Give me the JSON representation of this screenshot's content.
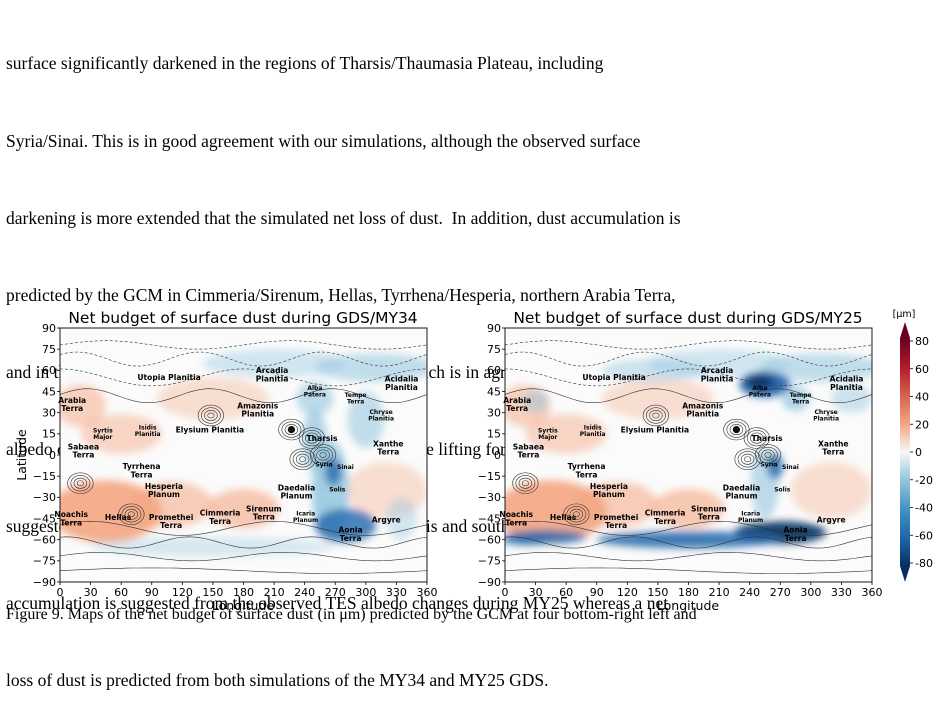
{
  "paragraph": {
    "lines": [
      "surface significantly darkened in the regions of Tharsis/Thaumasia Plateau, including",
      "Syria/Sinai. This is in good agreement with our simulations, although the observed surface",
      "darkening is more extended that the simulated net loss of dust.  In addition, dust accumulation is",
      "predicted by the GCM in Cimmeria/Sirenum, Hellas, Tyrrhena/Hesperia, northern Arabia Terra,",
      "and in the northern low-topographic plains below 45°N, which is in agreement with the observed",
      "albedo changes. However, the GCM predicts strong cap edge lifting for MY25, which is not",
      "suggested by the albedo maps. In the regions of Xanthe, Solis and south Arabia Terra, a net dust",
      "accumulation is suggested from the observed TES albedo changes during MY25 whereas a net",
      "loss of dust is predicted from both simulations of the MY34 and MY25 GDS."
    ]
  },
  "colors": {
    "dust_gain": "#f4a582",
    "dust_gain_strong": "#d6604d",
    "dust_loss": "#92c5de",
    "dust_loss_strong": "#2166ac",
    "dust_loss_extreme": "#053061",
    "dust_gain_extreme": "#67001f"
  },
  "figure": {
    "maps": [
      {
        "title": "Net budget of surface dust during GDS/MY34",
        "variant": "MY34"
      },
      {
        "title": "Net budget of surface dust during GDS/MY25",
        "variant": "MY25"
      }
    ],
    "xlabel": "Longitude",
    "ylabel": "Latitude",
    "xticks": [
      "0",
      "30",
      "60",
      "90",
      "120",
      "150",
      "180",
      "210",
      "240",
      "270",
      "300",
      "330",
      "360"
    ],
    "yticks": [
      "90",
      "75",
      "60",
      "45",
      "30",
      "15",
      "0",
      "−15",
      "−30",
      "−45",
      "−60",
      "−75",
      "−90"
    ],
    "colorbar": {
      "unit": "[μm]",
      "ticks": [
        "80",
        "60",
        "40",
        "20",
        "0",
        "-20",
        "-40",
        "-60",
        "-80"
      ]
    },
    "regions": [
      {
        "label": [
          "Utopia Planitia"
        ],
        "lon": 107,
        "lat": 53,
        "small": false
      },
      {
        "label": [
          "Arcadia",
          "Planitia"
        ],
        "lon": 208,
        "lat": 58,
        "small": false
      },
      {
        "label": [
          "Acidalia",
          "Planitia"
        ],
        "lon": 335,
        "lat": 52,
        "small": false
      },
      {
        "label": [
          "Alba",
          "Patera"
        ],
        "lon": 250,
        "lat": 46,
        "small": true
      },
      {
        "label": [
          "Tempe",
          "Terra"
        ],
        "lon": 290,
        "lat": 41,
        "small": true
      },
      {
        "label": [
          "Arabia",
          "Terra"
        ],
        "lon": 12,
        "lat": 37,
        "small": false
      },
      {
        "label": [
          "Amazonis",
          "Planitia"
        ],
        "lon": 194,
        "lat": 33,
        "small": false
      },
      {
        "label": [
          "Chryse",
          "Planitia"
        ],
        "lon": 315,
        "lat": 29,
        "small": true
      },
      {
        "label": [
          "Syrtis",
          "Major"
        ],
        "lon": 42,
        "lat": 16,
        "small": true
      },
      {
        "label": [
          "Isidis",
          "Planitia"
        ],
        "lon": 86,
        "lat": 18,
        "small": true
      },
      {
        "label": [
          "Elysium Planitia"
        ],
        "lon": 147,
        "lat": 16,
        "small": false
      },
      {
        "label": [
          "Tharsis"
        ],
        "lon": 257,
        "lat": 10,
        "small": false
      },
      {
        "label": [
          "Xanthe",
          "Terra"
        ],
        "lon": 322,
        "lat": 6,
        "small": false
      },
      {
        "label": [
          "Sabaea",
          "Terra"
        ],
        "lon": 23,
        "lat": 4,
        "small": false
      },
      {
        "label": [
          "Syria"
        ],
        "lon": 259,
        "lat": -8,
        "small": true
      },
      {
        "label": [
          "Sinai"
        ],
        "lon": 280,
        "lat": -10,
        "small": true
      },
      {
        "label": [
          "Tyrrhena",
          "Terra"
        ],
        "lon": 80,
        "lat": -10,
        "small": false
      },
      {
        "label": [
          "Hesperia",
          "Planum"
        ],
        "lon": 102,
        "lat": -24,
        "small": false
      },
      {
        "label": [
          "Daedalia",
          "Planum"
        ],
        "lon": 232,
        "lat": -25,
        "small": false
      },
      {
        "label": [
          "Solis"
        ],
        "lon": 272,
        "lat": -26,
        "small": true
      },
      {
        "label": [
          "Noachis",
          "Terra"
        ],
        "lon": 11,
        "lat": -44,
        "small": false
      },
      {
        "label": [
          "Hellas"
        ],
        "lon": 57,
        "lat": -46,
        "small": false
      },
      {
        "label": [
          "Promethei",
          "Terra"
        ],
        "lon": 109,
        "lat": -46,
        "small": false
      },
      {
        "label": [
          "Cimmeria",
          "Terra"
        ],
        "lon": 157,
        "lat": -43,
        "small": false
      },
      {
        "label": [
          "Sirenum",
          "Terra"
        ],
        "lon": 200,
        "lat": -40,
        "small": false
      },
      {
        "label": [
          "Icaria",
          "Planum"
        ],
        "lon": 241,
        "lat": -43,
        "small": true
      },
      {
        "label": [
          "Aonia",
          "Terra"
        ],
        "lon": 285,
        "lat": -55,
        "small": false
      },
      {
        "label": [
          "Argyre"
        ],
        "lon": 320,
        "lat": -48,
        "small": false
      }
    ]
  },
  "caption": "Figure 9. Maps of the net budget of surface dust (in μm) predicted by the GCM at four bottom-right left and"
}
